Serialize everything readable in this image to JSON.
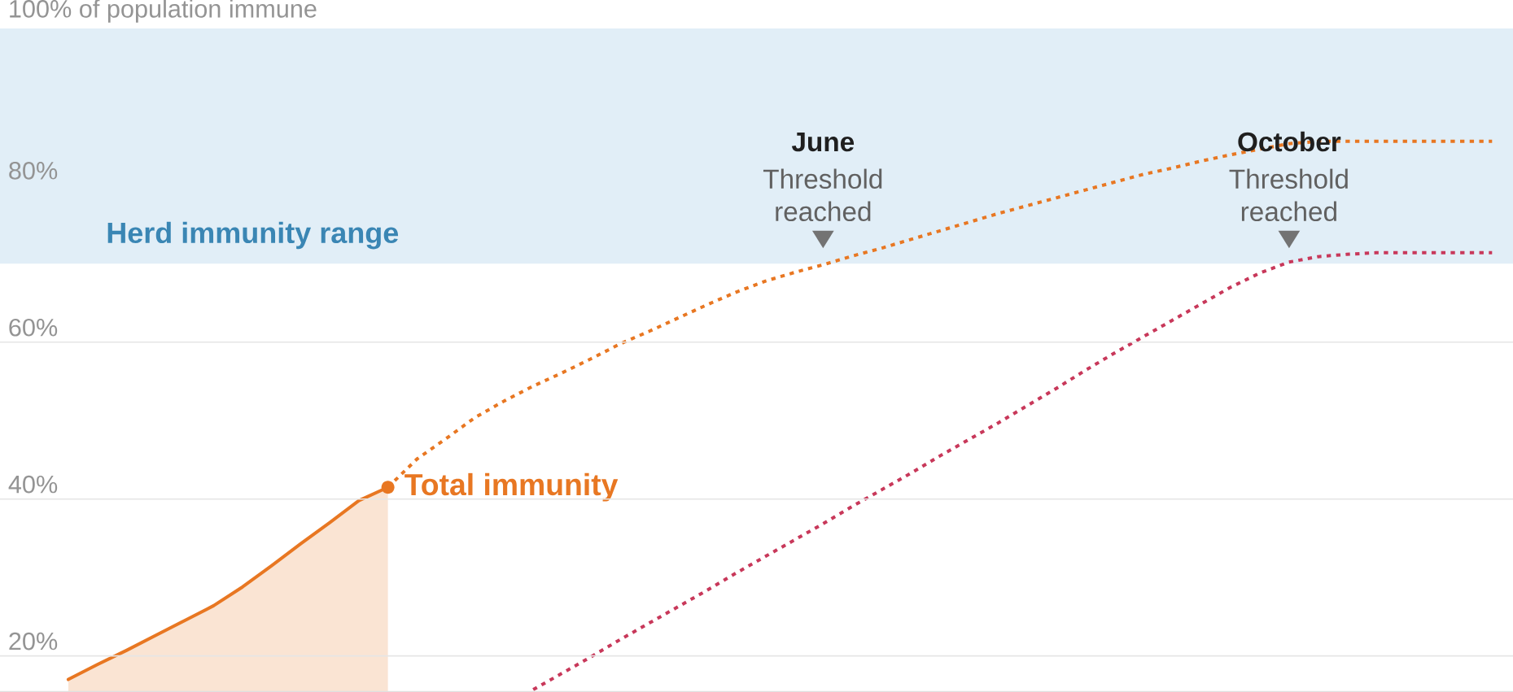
{
  "chart_data": {
    "type": "line",
    "categories": [
      null,
      null,
      null,
      null,
      null,
      null,
      null,
      null,
      null,
      null,
      null,
      null,
      null,
      null,
      null,
      null,
      null,
      null,
      null,
      null,
      null,
      null,
      null,
      null,
      null,
      null,
      null,
      null,
      null,
      null,
      null,
      null,
      null,
      null,
      null,
      null,
      null,
      null,
      null,
      null,
      null,
      null,
      null,
      null,
      null,
      null,
      null,
      null,
      null,
      null,
      null,
      null
    ],
    "ylim": [
      15.4,
      100
    ],
    "yticks": [
      {
        "value": 20,
        "label": "20%"
      },
      {
        "value": 40,
        "label": "40%"
      },
      {
        "value": 60,
        "label": "60%"
      },
      {
        "value": 80,
        "label": "80%"
      },
      {
        "value": 100,
        "label": "100% of population immune"
      }
    ],
    "grid": "y",
    "tick_labels": "y",
    "legend": false,
    "bands": [
      {
        "axis": "y",
        "from": 70,
        "to": 100,
        "label": "Herd immunity range",
        "color": "#e1eef7"
      }
    ],
    "annotations": [
      "June",
      "Threshold reached",
      "October",
      "Threshold reached"
    ],
    "series": [
      {
        "name": "Total immunity",
        "type": "area",
        "color": "#e87722",
        "line_style": "solid",
        "values": [
          null,
          null,
          17.0,
          18.9,
          20.7,
          22.6,
          24.5,
          26.4,
          28.8,
          31.5,
          34.3,
          37.0,
          39.8,
          41.5,
          null,
          null,
          null,
          null,
          null,
          null,
          null,
          null,
          null,
          null,
          null,
          null,
          null,
          null,
          null,
          null,
          null,
          null,
          null,
          null,
          null,
          null,
          null,
          null,
          null,
          null,
          null,
          null,
          null,
          null,
          null,
          null,
          null,
          null,
          null,
          null,
          null,
          null
        ]
      },
      {
        "type": "line",
        "color": "#e87722",
        "line_style": "dotted",
        "values": [
          null,
          null,
          null,
          null,
          null,
          null,
          null,
          null,
          null,
          null,
          null,
          null,
          null,
          41.5,
          45.1,
          47.7,
          50.4,
          52.5,
          54.4,
          56.1,
          57.9,
          59.8,
          61.4,
          63.1,
          64.8,
          66.4,
          67.8,
          68.9,
          69.9,
          71.0,
          72.0,
          73.1,
          74.2,
          75.3,
          76.4,
          77.4,
          78.4,
          79.4,
          80.4,
          81.4,
          82.2,
          83.1,
          83.9,
          84.6,
          85.3,
          85.6,
          85.6,
          85.6,
          85.6,
          85.6,
          85.6,
          85.6
        ]
      },
      {
        "type": "line",
        "color": "#c8385a",
        "line_style": "dotted",
        "values": [
          null,
          null,
          null,
          null,
          null,
          null,
          null,
          null,
          null,
          null,
          null,
          null,
          null,
          null,
          null,
          null,
          null,
          null,
          15.7,
          17.8,
          19.9,
          22.1,
          24.2,
          26.3,
          28.4,
          30.6,
          32.7,
          34.8,
          36.9,
          39.1,
          41.2,
          43.3,
          45.5,
          47.6,
          49.7,
          51.9,
          54.1,
          56.4,
          58.6,
          60.7,
          62.8,
          64.9,
          67.0,
          68.8,
          70.2,
          70.9,
          71.2,
          71.4,
          71.4,
          71.4,
          71.4,
          71.4
        ]
      }
    ]
  }
}
